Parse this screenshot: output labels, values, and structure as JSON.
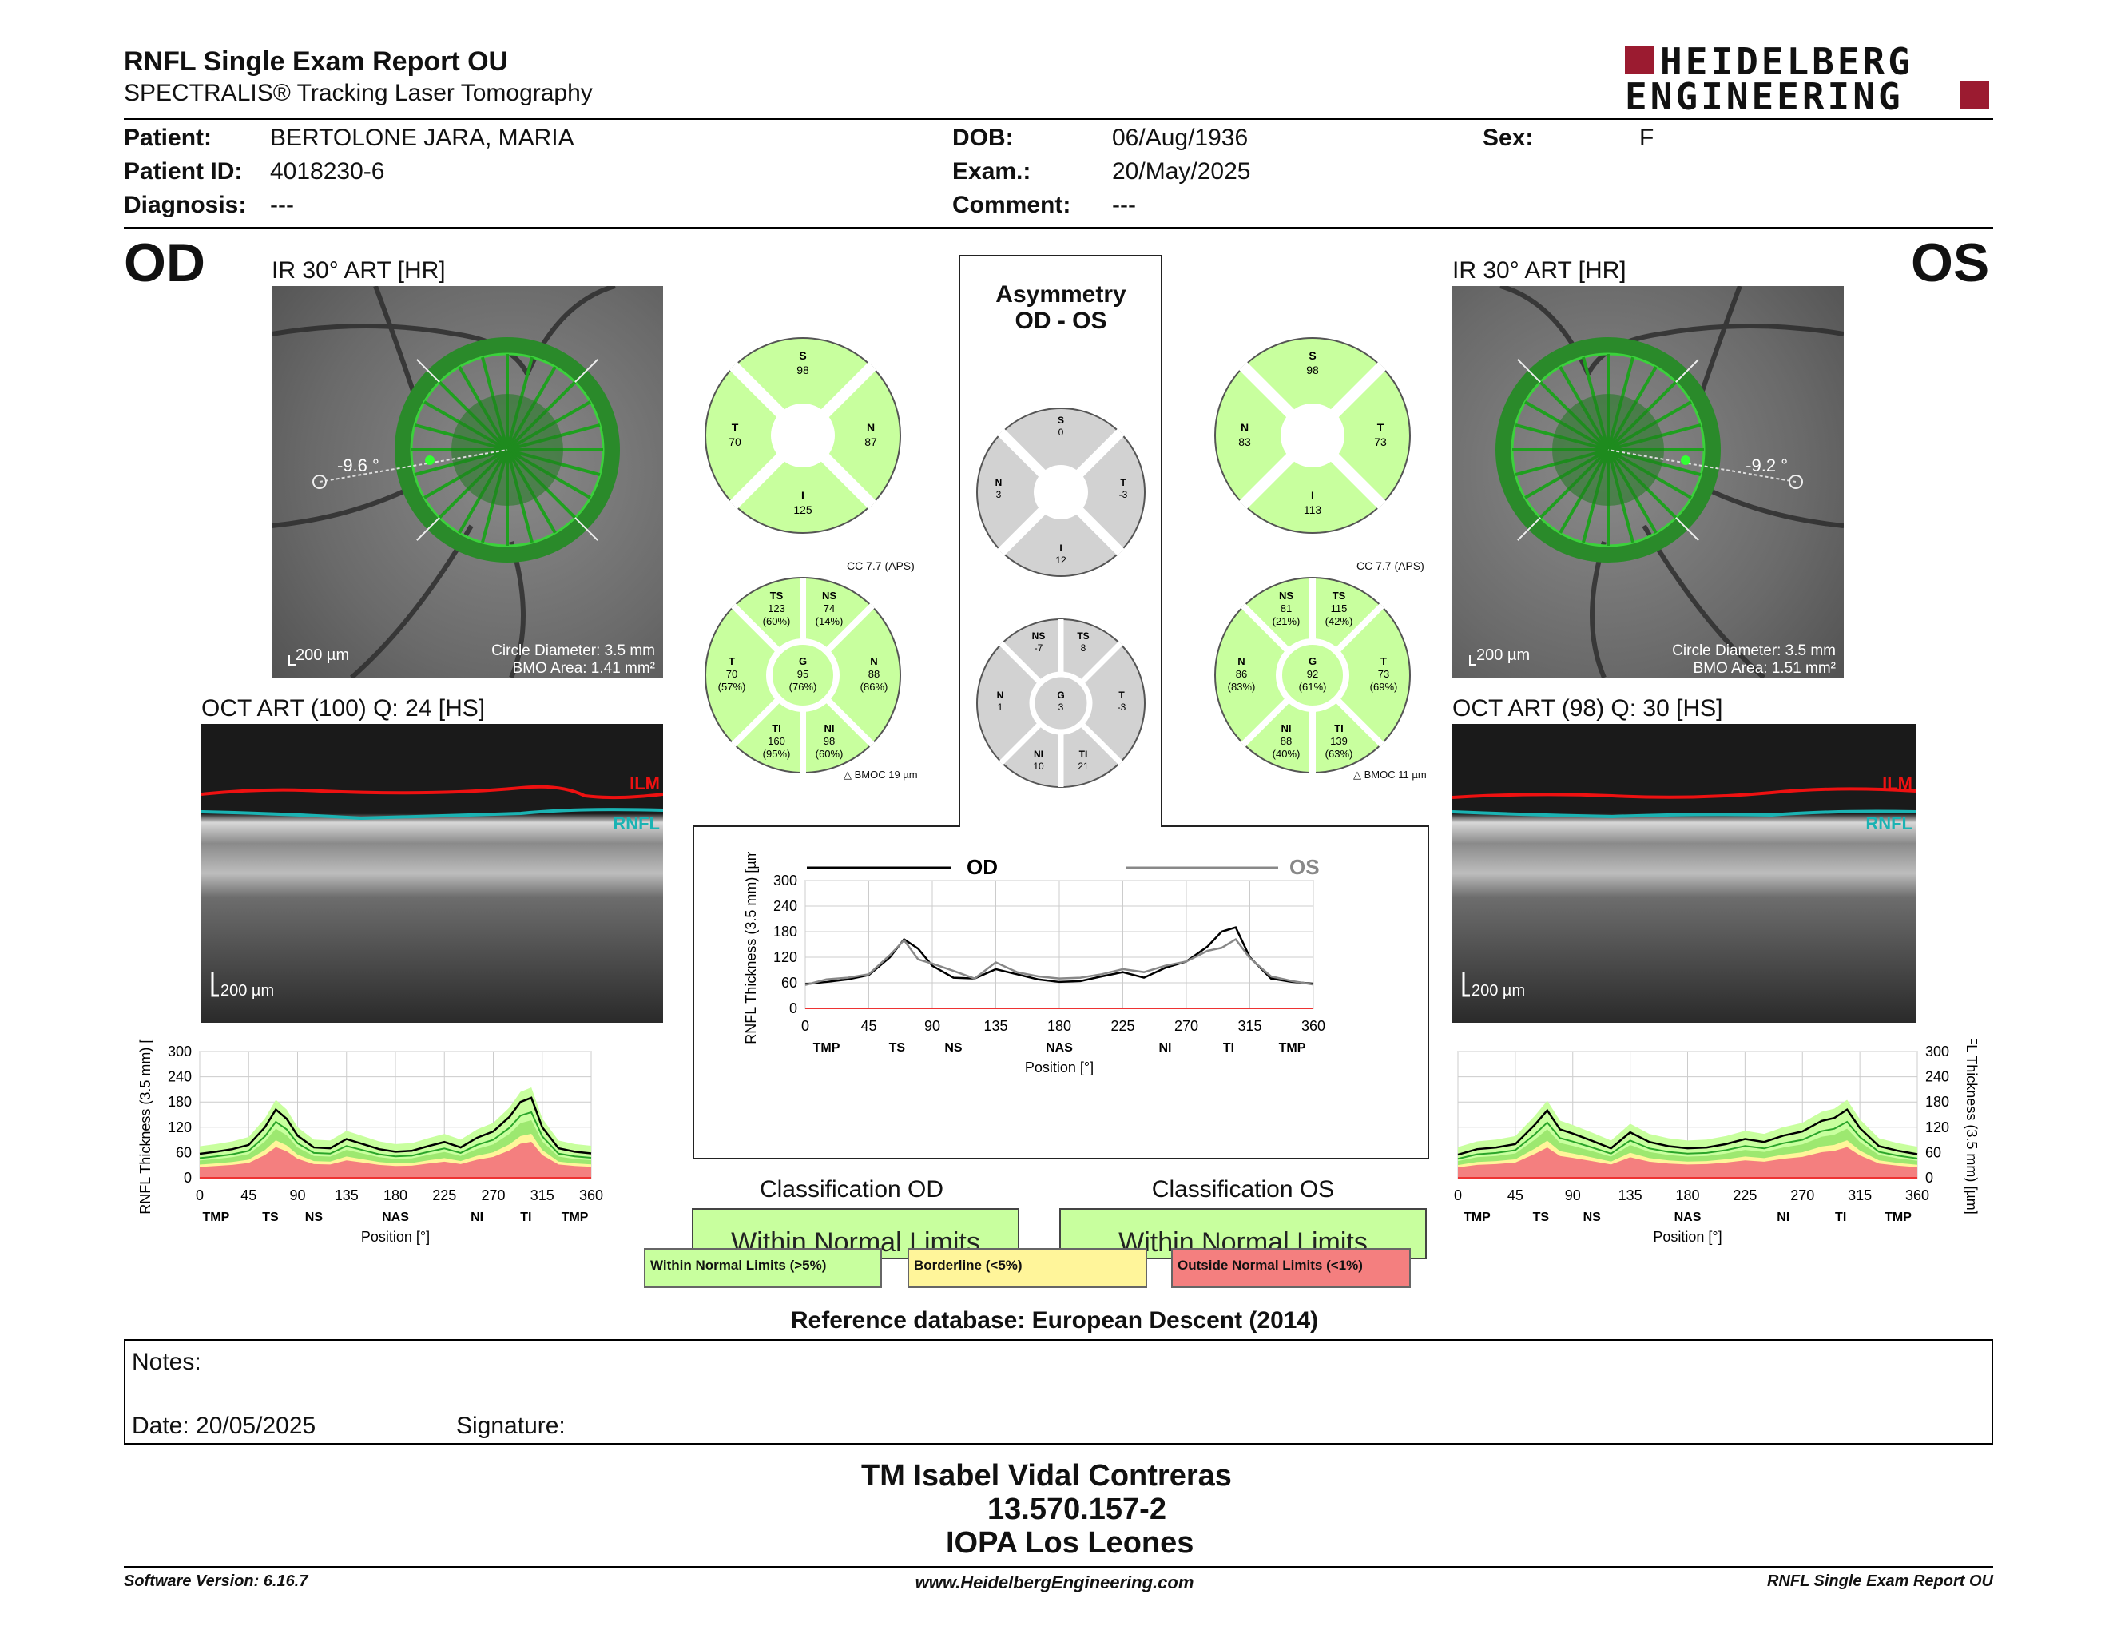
{
  "header": {
    "title": "RNFL Single Exam Report OU",
    "subtitle": "SPECTRALIS® Tracking Laser Tomography",
    "logo_top": "HEIDELBERG",
    "logo_bottom": "ENGINEERING"
  },
  "patient": {
    "patient_label": "Patient:",
    "patient_value": "BERTOLONE JARA, MARIA",
    "id_label": "Patient ID:",
    "id_value": "4018230-6",
    "diag_label": "Diagnosis:",
    "diag_value": "---",
    "dob_label": "DOB:",
    "dob_value": "06/Aug/1936",
    "exam_label": "Exam.:",
    "exam_value": "20/May/2025",
    "comment_label": "Comment:",
    "comment_value": "---",
    "sex_label": "Sex:",
    "sex_value": "F"
  },
  "od": {
    "eye": "OD",
    "ir_title": "IR 30° ART [HR]",
    "angle": "-9.6 °",
    "scale": "200 µm",
    "circle": "Circle Diameter: 3.5 mm",
    "bmo": "BMO Area: 1.41 mm²",
    "oct_title": "OCT ART (100) Q: 24 [HS]",
    "ilm": "ILM",
    "rnfl": "RNFL",
    "oct_scale": "200 µm",
    "sectors4": {
      "S": "98",
      "T": "70",
      "N": "87",
      "I": "125"
    },
    "cc": "CC 7.7 (APS)",
    "bmoc": "BMOC 19 µm",
    "sectors6": {
      "TS": "123",
      "TS_p": "(60%)",
      "NS": "74",
      "NS_p": "(14%)",
      "T": "70",
      "T_p": "(57%)",
      "G": "95",
      "G_p": "(76%)",
      "N": "88",
      "N_p": "(86%)",
      "TI": "160",
      "TI_p": "(95%)",
      "NI": "98",
      "NI_p": "(60%)"
    },
    "classification_title": "Classification OD",
    "classification": "Within Normal Limits"
  },
  "os": {
    "eye": "OS",
    "ir_title": "IR 30° ART [HR]",
    "angle": "-9.2 °",
    "scale": "200 µm",
    "circle": "Circle Diameter: 3.5 mm",
    "bmo": "BMO Area: 1.51 mm²",
    "oct_title": "OCT ART (98) Q: 30 [HS]",
    "ilm": "ILM",
    "rnfl": "RNFL",
    "oct_scale": "200 µm",
    "sectors4": {
      "S": "98",
      "T": "73",
      "N": "83",
      "I": "113"
    },
    "cc": "CC 7.7 (APS)",
    "bmoc": "BMOC 11 µm",
    "sectors6": {
      "TS": "115",
      "TS_p": "(42%)",
      "NS": "81",
      "NS_p": "(21%)",
      "T": "73",
      "T_p": "(69%)",
      "G": "92",
      "G_p": "(61%)",
      "N": "86",
      "N_p": "(83%)",
      "TI": "139",
      "TI_p": "(63%)",
      "NI": "88",
      "NI_p": "(40%)"
    },
    "classification_title": "Classification OS",
    "classification": "Within Normal Limits"
  },
  "asymmetry": {
    "title1": "Asymmetry",
    "title2": "OD - OS",
    "sectors4": {
      "S": "0",
      "N": "3",
      "T": "-3",
      "I": "12"
    },
    "sectors6": {
      "NS": "-7",
      "TS": "8",
      "N": "1",
      "G": "3",
      "T": "-3",
      "NI": "10",
      "TI": "21"
    },
    "legend_od": "OD",
    "legend_os": "OS"
  },
  "chart_labels": {
    "ylabel": "RNFL Thickness (3.5 mm) [µm]",
    "xlabel": "Position [°]",
    "yticks": [
      "0",
      "60",
      "120",
      "180",
      "240",
      "300"
    ],
    "xticks": [
      "0",
      "45",
      "90",
      "135",
      "180",
      "225",
      "270",
      "315",
      "360"
    ],
    "regions": [
      "TMP",
      "TS",
      "NS",
      "NAS",
      "NI",
      "TI",
      "TMP"
    ]
  },
  "chart_data": [
    {
      "type": "line",
      "id": "od-profile",
      "x": [
        0,
        15,
        30,
        45,
        60,
        70,
        80,
        90,
        105,
        120,
        135,
        150,
        165,
        180,
        195,
        210,
        225,
        240,
        255,
        270,
        285,
        295,
        305,
        315,
        330,
        345,
        360
      ],
      "series": [
        {
          "name": "",
          "values": [
            57,
            62,
            68,
            78,
            120,
            162,
            140,
            100,
            72,
            70,
            92,
            80,
            68,
            62,
            64,
            75,
            85,
            72,
            95,
            110,
            145,
            180,
            190,
            120,
            70,
            62,
            58
          ]
        }
      ],
      "ylim": [
        0,
        300
      ],
      "xlim": [
        0,
        360
      ]
    },
    {
      "type": "line",
      "id": "os-profile",
      "x": [
        0,
        15,
        30,
        45,
        60,
        70,
        80,
        90,
        105,
        120,
        135,
        150,
        165,
        180,
        195,
        210,
        225,
        240,
        255,
        270,
        285,
        295,
        305,
        315,
        330,
        345,
        360
      ],
      "series": [
        {
          "name": "",
          "values": [
            55,
            68,
            72,
            80,
            125,
            160,
            115,
            105,
            88,
            70,
            108,
            85,
            75,
            70,
            72,
            80,
            92,
            85,
            100,
            110,
            135,
            142,
            162,
            118,
            75,
            64,
            56
          ]
        }
      ],
      "ylim": [
        0,
        300
      ],
      "xlim": [
        0,
        360
      ]
    },
    {
      "type": "line",
      "id": "asym-profile",
      "x": [
        0,
        15,
        30,
        45,
        60,
        70,
        80,
        90,
        105,
        120,
        135,
        150,
        165,
        180,
        195,
        210,
        225,
        240,
        255,
        270,
        285,
        295,
        305,
        315,
        330,
        345,
        360
      ],
      "series": [
        {
          "name": "OD",
          "values": [
            57,
            62,
            68,
            78,
            120,
            162,
            140,
            100,
            72,
            70,
            92,
            80,
            68,
            62,
            64,
            75,
            85,
            72,
            95,
            110,
            145,
            180,
            190,
            120,
            70,
            62,
            58
          ]
        },
        {
          "name": "OS",
          "values": [
            55,
            68,
            72,
            80,
            125,
            160,
            115,
            105,
            88,
            70,
            108,
            85,
            75,
            70,
            72,
            80,
            92,
            85,
            100,
            110,
            135,
            142,
            162,
            118,
            75,
            64,
            56
          ]
        }
      ],
      "ylim": [
        0,
        300
      ],
      "xlim": [
        0,
        360
      ]
    }
  ],
  "legend": {
    "wnl": "Within Normal Limits (>5%)",
    "bl": "Borderline (<5%)",
    "onl": "Outside Normal Limits (<1%)"
  },
  "reference": "Reference database: European Descent (2014)",
  "notes": {
    "notes_label": "Notes:",
    "date_label": "Date: 20/05/2025",
    "signature_label": "Signature:"
  },
  "signer": {
    "name": "TM Isabel Vidal Contreras",
    "id": "13.570.157-2",
    "org": "IOPA Los Leones"
  },
  "footer": {
    "software": "Software Version: 6.16.7",
    "url": "www.HeidelbergEngineering.com",
    "report": "RNFL Single Exam Report OU"
  },
  "colors": {
    "normal": "#c8ff9e",
    "normal_band": "#9de870",
    "border": "#fff59a",
    "outside": "#f47f7f",
    "grey": "#d2d2d2",
    "ilm": "#e11",
    "rnfl": "#1bb3b3",
    "logo": "#9b1b30"
  }
}
